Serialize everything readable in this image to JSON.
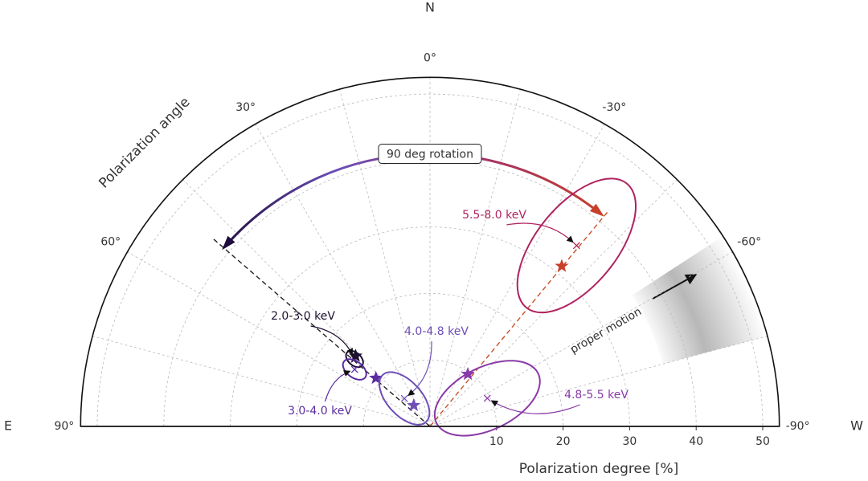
{
  "chart_data": {
    "type": "polar",
    "directions": {
      "north": "N",
      "east": "E",
      "west": "W"
    },
    "angle_axis_label": "Polarization angle",
    "radial_axis_label": "Polarization degree [%]",
    "rlim": [
      0,
      52.5
    ],
    "rticks": [
      10,
      20,
      30,
      40,
      50
    ],
    "angle_ticks": [
      {
        "value": 90,
        "label": "90°"
      },
      {
        "value": 60,
        "label": "60°"
      },
      {
        "value": 30,
        "label": "30°"
      },
      {
        "value": 0,
        "label": "0°"
      },
      {
        "value": -30,
        "label": "-30°"
      },
      {
        "value": -60,
        "label": "-60°"
      },
      {
        "value": -90,
        "label": "-90°"
      }
    ],
    "angle_grid": [
      75,
      45,
      15,
      -15,
      -45,
      -75
    ],
    "grid": true,
    "series": [
      {
        "name": "2.0-3.0 keV",
        "color": "#1e1030",
        "pd": 15.2,
        "pa": 48.2,
        "star_pd": 15.4,
        "star_pa": 46.5,
        "pd_err": 1.5,
        "pa_err": 3.6
      },
      {
        "name": "3.0-4.0 keV",
        "color": "#5a2ca0",
        "pd": 14.2,
        "pa": 52.9,
        "star_pd": 10.9,
        "star_pa": 48.2,
        "pd_err": 2.0,
        "pa_err": 4.9
      },
      {
        "name": "4.0-4.8 keV",
        "color": "#6e4fb8",
        "pd": 5.7,
        "pa": 42.4,
        "star_pd": 4.0,
        "star_pa": 37.6,
        "pd_err": 4.8,
        "pa_err": 26
      },
      {
        "name": "4.8-5.5 keV",
        "color": "#8a3aa8",
        "pd": 9.6,
        "pa": -63.8,
        "star_pd": 9.7,
        "star_pa": -35.9,
        "pd_err": 8.5,
        "pa_err": 28
      },
      {
        "name": "5.5-8.0 keV",
        "color": "#b0235f",
        "pd": 35.0,
        "pa": -39.0,
        "star_pd": 31.2,
        "star_pa": -39.4,
        "pd_err": 12,
        "pa_err": 9.9,
        "star_color": "#c8402a"
      }
    ],
    "dashed_lines": [
      {
        "pa": 49.1,
        "pd": 43.1,
        "color": "#222222"
      },
      {
        "pa": -39.6,
        "pd": 42.3,
        "color": "#c8502a"
      }
    ],
    "rotation": {
      "label": "90 deg rotation",
      "pd": 41,
      "pa_start": -39,
      "pa_end": 49
    },
    "proper_motion": "proper motion"
  }
}
